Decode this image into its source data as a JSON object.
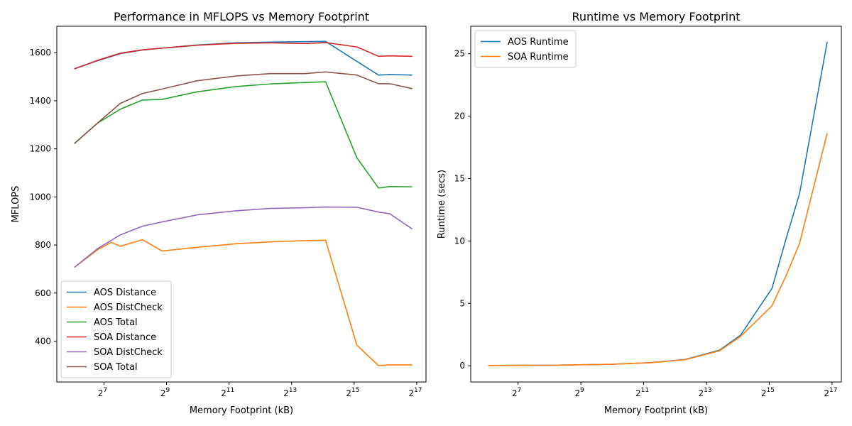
{
  "chart_data": [
    {
      "type": "line",
      "title": "Performance in MFLOPS vs Memory Footprint",
      "xlabel": "Memory Footprint (kB)",
      "ylabel": "MFLOPS",
      "xscale": "log2",
      "xlim": [
        45,
        161000
      ],
      "ylim": [
        230,
        1710
      ],
      "xticks": [
        {
          "value": 128,
          "base": "2",
          "exp": "7"
        },
        {
          "value": 512,
          "base": "2",
          "exp": "9"
        },
        {
          "value": 2048,
          "base": "2",
          "exp": "11"
        },
        {
          "value": 8192,
          "base": "2",
          "exp": "13"
        },
        {
          "value": 32768,
          "base": "2",
          "exp": "15"
        },
        {
          "value": 131072,
          "base": "2",
          "exp": "17"
        }
      ],
      "yticks": [
        400,
        600,
        800,
        1000,
        1200,
        1400,
        1600
      ],
      "legend_position": "lower-left",
      "series": [
        {
          "name": "AOS Distance",
          "color": "#1f77b4",
          "x": [
            67,
            112,
            184,
            300,
            465,
            1000,
            2370,
            5080,
            10950,
            17400,
            34800,
            56200,
            72000,
            117500
          ],
          "y": [
            1534,
            1567,
            1596,
            1611,
            1619,
            1632,
            1641,
            1644,
            1646,
            1647,
            1564,
            1507,
            1509,
            1507
          ]
        },
        {
          "name": "AOS DistCheck",
          "color": "#ff7f0e",
          "x": [
            67,
            112,
            150,
            184,
            300,
            465,
            1000,
            2370,
            5080,
            10950,
            17400,
            34800,
            56200,
            72000,
            117500
          ],
          "y": [
            708,
            781,
            811,
            795,
            822,
            775,
            790,
            805,
            813,
            818,
            820,
            383,
            298,
            301,
            301
          ]
        },
        {
          "name": "AOS Total",
          "color": "#2ca02c",
          "x": [
            67,
            112,
            184,
            300,
            465,
            1000,
            2370,
            5080,
            10950,
            17400,
            34800,
            56200,
            72000,
            117500
          ],
          "y": [
            1224,
            1308,
            1365,
            1403,
            1406,
            1437,
            1459,
            1470,
            1476,
            1479,
            1163,
            1037,
            1043,
            1042
          ]
        },
        {
          "name": "SOA Distance",
          "color": "#d62728",
          "x": [
            67,
            112,
            184,
            300,
            465,
            1000,
            2370,
            5080,
            10950,
            17400,
            34800,
            56200,
            72000,
            117500
          ],
          "y": [
            1533,
            1569,
            1598,
            1612,
            1619,
            1631,
            1639,
            1641,
            1638,
            1642,
            1624,
            1585,
            1587,
            1585
          ]
        },
        {
          "name": "SOA DistCheck",
          "color": "#9467bd",
          "x": [
            67,
            112,
            184,
            300,
            465,
            1000,
            2370,
            5080,
            10950,
            17400,
            34800,
            56200,
            72000,
            117500
          ],
          "y": [
            708,
            786,
            842,
            878,
            896,
            925,
            942,
            952,
            955,
            958,
            957,
            937,
            930,
            868
          ]
        },
        {
          "name": "SOA Total",
          "color": "#8c564b",
          "x": [
            67,
            112,
            184,
            300,
            465,
            1000,
            2370,
            5080,
            10950,
            17400,
            34800,
            56200,
            72000,
            117500
          ],
          "y": [
            1223,
            1309,
            1389,
            1430,
            1449,
            1483,
            1503,
            1513,
            1513,
            1520,
            1507,
            1471,
            1471,
            1451
          ]
        }
      ]
    },
    {
      "type": "line",
      "title": "Runtime vs Memory Footprint",
      "xlabel": "Memory Footprint (kB)",
      "ylabel": "Runtime (secs)",
      "xscale": "log2",
      "xlim": [
        45,
        161000
      ],
      "ylim": [
        -1.3,
        27.2
      ],
      "xticks": [
        {
          "value": 128,
          "base": "2",
          "exp": "7"
        },
        {
          "value": 512,
          "base": "2",
          "exp": "9"
        },
        {
          "value": 2048,
          "base": "2",
          "exp": "11"
        },
        {
          "value": 8192,
          "base": "2",
          "exp": "13"
        },
        {
          "value": 32768,
          "base": "2",
          "exp": "15"
        },
        {
          "value": 131072,
          "base": "2",
          "exp": "17"
        }
      ],
      "yticks": [
        0,
        5,
        10,
        15,
        20,
        25
      ],
      "legend_position": "upper-left",
      "series": [
        {
          "name": "AOS Runtime",
          "color": "#1f77b4",
          "x": [
            67,
            300,
            1000,
            2370,
            5080,
            10950,
            17400,
            34800,
            48000,
            64000,
            117500
          ],
          "y": [
            0.02,
            0.05,
            0.12,
            0.25,
            0.5,
            1.25,
            2.45,
            6.2,
            10.3,
            13.8,
            25.9
          ]
        },
        {
          "name": "SOA Runtime",
          "color": "#ff7f0e",
          "x": [
            67,
            300,
            1000,
            2370,
            5080,
            10950,
            17400,
            34800,
            48000,
            64000,
            117500
          ],
          "y": [
            0.02,
            0.05,
            0.12,
            0.24,
            0.48,
            1.2,
            2.35,
            4.8,
            7.3,
            9.8,
            18.6
          ]
        }
      ]
    }
  ]
}
